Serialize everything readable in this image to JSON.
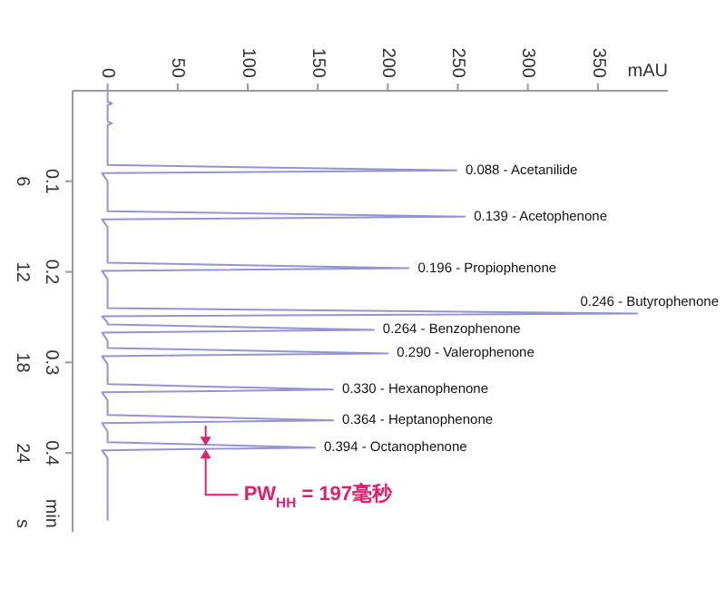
{
  "chart_data": {
    "type": "line",
    "xlabel": "mAU",
    "ylabel": "min",
    "y2label": "s",
    "xlim": [
      -25,
      400
    ],
    "xticks": [
      0,
      50,
      100,
      150,
      200,
      250,
      300,
      350
    ],
    "ylim": [
      0.487,
      0
    ],
    "yticks": [
      0.1,
      0.2,
      0.3,
      0.4
    ],
    "y2lim": [
      29.2,
      0
    ],
    "y2ticks": [
      6,
      12,
      18,
      24
    ],
    "grid": false,
    "marker": "none",
    "line_style": "solid",
    "series": [
      {
        "color": "#9494d4",
        "x": [
          0,
          0,
          3,
          0,
          0,
          3,
          0,
          0,
          249,
          -4,
          0,
          0,
          255,
          -4,
          0,
          0,
          215,
          -4,
          0,
          0,
          378,
          -4,
          0,
          0,
          190,
          -4,
          0,
          0,
          200,
          -4,
          0,
          0,
          161,
          -4,
          0,
          0,
          161,
          -4,
          0,
          0,
          148,
          -4,
          0,
          0
        ],
        "values": [
          0,
          0.012,
          0.014,
          0.016,
          0.034,
          0.036,
          0.038,
          0.082,
          0.088,
          0.091,
          0.1,
          0.133,
          0.139,
          0.142,
          0.151,
          0.19,
          0.196,
          0.199,
          0.208,
          0.24,
          0.246,
          0.249,
          0.256,
          0.258,
          0.264,
          0.267,
          0.276,
          0.284,
          0.29,
          0.293,
          0.302,
          0.324,
          0.33,
          0.333,
          0.342,
          0.358,
          0.364,
          0.367,
          0.376,
          0.388,
          0.394,
          0.397,
          0.406,
          0.474
        ]
      }
    ],
    "annotations": [
      {
        "text": "0.088 - Acetanilide",
        "x": 249,
        "y": 0.088
      },
      {
        "text": "0.139 - Acetophenone",
        "x": 255,
        "y": 0.139
      },
      {
        "text": "0.196 - Propiophenone",
        "x": 215,
        "y": 0.196
      },
      {
        "text": "0.246 - Butyrophenone",
        "x": 378,
        "y": 0.246
      },
      {
        "text": "0.264 - Benzophenone",
        "x": 190,
        "y": 0.264
      },
      {
        "text": "0.290 - Valerophenone",
        "x": 200,
        "y": 0.29
      },
      {
        "text": "0.330 - Hexanophenone",
        "x": 161,
        "y": 0.33
      },
      {
        "text": "0.364 - Heptanophenone",
        "x": 161,
        "y": 0.364
      },
      {
        "text": "0.394 - Octanophenone",
        "x": 148,
        "y": 0.394
      },
      "PW$_{HH}$ = 197毫秒"
    ]
  }
}
